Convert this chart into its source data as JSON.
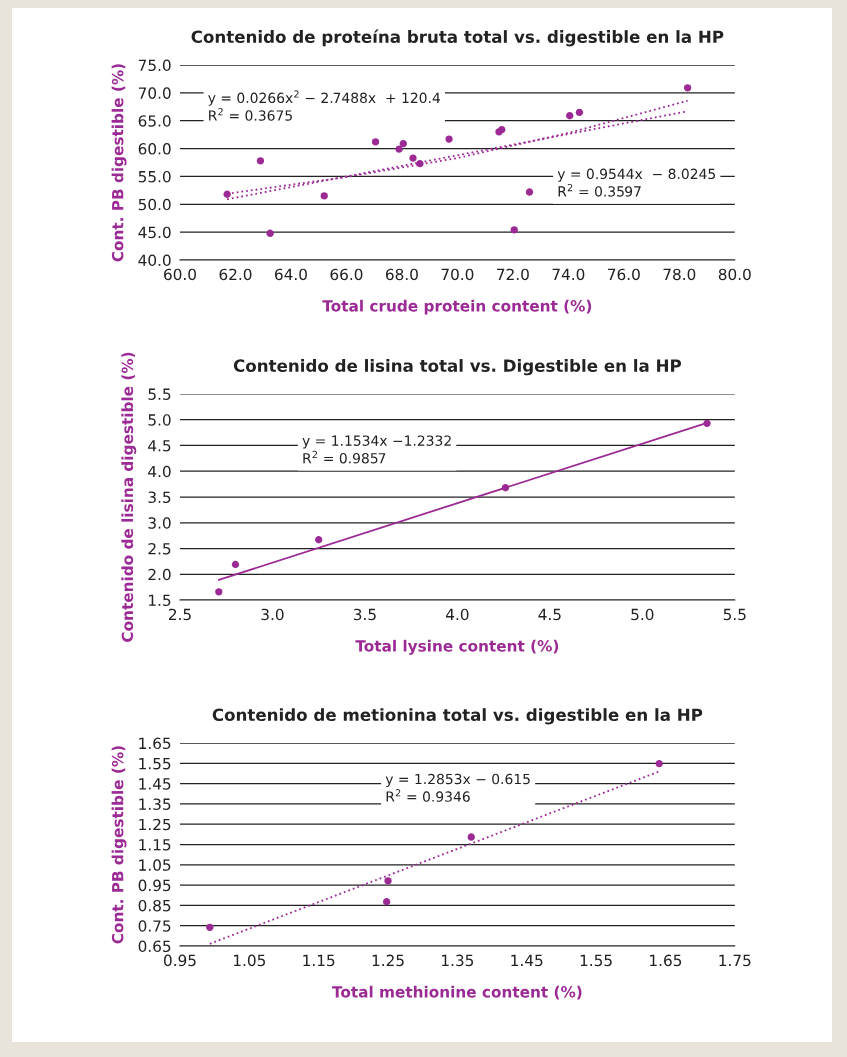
{
  "chart_data": [
    {
      "type": "scatter",
      "title": "Contenido de proteína bruta total vs. digestible en la HP",
      "xlabel": "Total crude protein content (%)",
      "ylabel": "Cont. PB digestible (%)",
      "xlim": [
        60,
        80
      ],
      "xticks": [
        {
          "value": 60,
          "label": "60.0"
        },
        {
          "value": 62,
          "label": "62.0"
        },
        {
          "value": 64,
          "label": "64.0"
        },
        {
          "value": 66,
          "label": "66.0"
        },
        {
          "value": 68,
          "label": "68.0"
        },
        {
          "value": 70,
          "label": "70.0"
        },
        {
          "value": 72,
          "label": "72.0"
        },
        {
          "value": 74,
          "label": "74.0"
        },
        {
          "value": 76,
          "label": "76.0"
        },
        {
          "value": 78,
          "label": "78.0"
        },
        {
          "value": 80,
          "label": "80.0"
        }
      ],
      "ylim": [
        40,
        75
      ],
      "yticks": [
        {
          "value": 40,
          "label": "40.0"
        },
        {
          "value": 45,
          "label": "45.0"
        },
        {
          "value": 50,
          "label": "50.0"
        },
        {
          "value": 55,
          "label": "55.0"
        },
        {
          "value": 60,
          "label": "60.0"
        },
        {
          "value": 65,
          "label": "65.0"
        },
        {
          "value": 70,
          "label": "70.0"
        },
        {
          "value": 75,
          "label": "75.0"
        }
      ],
      "grid": "y",
      "series": [
        {
          "marker": "circle",
          "color": "#9c2a95",
          "x": [
            61.7,
            62.9,
            63.25,
            65.2,
            67.05,
            67.9,
            68.05,
            68.4,
            68.65,
            69.7,
            71.5,
            71.6,
            72.05,
            72.6,
            74.05,
            74.4,
            78.3
          ],
          "values": [
            51.8,
            57.8,
            44.8,
            51.5,
            61.2,
            59.9,
            60.9,
            58.3,
            57.3,
            61.7,
            63.0,
            63.4,
            45.4,
            52.2,
            65.9,
            66.5,
            70.9
          ]
        },
        {
          "type": "line",
          "line_style": "dotted",
          "color": "#9c2a95",
          "x": [
            61.7,
            66,
            70,
            74,
            78.3
          ],
          "values": [
            51.9,
            54.9,
            58.3,
            62.8,
            68.6
          ]
        },
        {
          "type": "line",
          "line_style": "dotted",
          "color": "#9c2a95",
          "x": [
            61.7,
            78.3
          ],
          "values": [
            50.9,
            66.7
          ]
        }
      ],
      "annotations": [
        "y = 0.0266x$^{2}$ − 2.7488x  + 120.4\nR$^{2}$ = 0.3675",
        "y = 0.9544x  − 8.0245\nR$^{2}$ = 0.3597"
      ]
    },
    {
      "type": "scatter",
      "title": "Contenido de lisina total vs. Digestible en la HP",
      "xlabel": "Total lysine content (%)",
      "ylabel": "Contenido de lisina digestible (%)",
      "xlim": [
        2.5,
        5.5
      ],
      "xticks": [
        2.5,
        {
          "value": 3,
          "label": "3.0"
        },
        3.5,
        {
          "value": 4,
          "label": "4.0"
        },
        4.5,
        {
          "value": 5,
          "label": "5.0"
        },
        5.5
      ],
      "ylim": [
        1.5,
        5.5
      ],
      "yticks": [
        1.5,
        {
          "value": 2,
          "label": "2.0"
        },
        2.5,
        {
          "value": 3,
          "label": "3.0"
        },
        3.5,
        {
          "value": 4,
          "label": "4.0"
        },
        4.5,
        {
          "value": 5,
          "label": "5.0"
        },
        5.5
      ],
      "grid": "y",
      "series": [
        {
          "marker": "circle",
          "color": "#9c2a95",
          "x": [
            2.71,
            2.8,
            3.25,
            4.26,
            5.35
          ],
          "values": [
            1.66,
            2.19,
            2.67,
            3.68,
            4.93
          ]
        },
        {
          "type": "line",
          "line_style": "solid",
          "color": "#9c2a95",
          "x": [
            2.71,
            5.35
          ],
          "values": [
            1.89,
            4.94
          ]
        }
      ],
      "annotations": [
        "y = 1.1534x −1.2332\nR$^{2}$ = 0.9857"
      ]
    },
    {
      "type": "scatter",
      "title": "Contenido de metionina total vs. digestible en la HP",
      "xlabel": "Total methionine content (%)",
      "ylabel": "Cont. PB digestible (%)",
      "xlim": [
        0.95,
        1.75
      ],
      "xticks": [
        0.95,
        1.05,
        1.15,
        1.25,
        1.35,
        1.45,
        1.55,
        1.65,
        1.75
      ],
      "ylim": [
        0.65,
        1.65
      ],
      "yticks": [
        0.65,
        0.75,
        0.85,
        0.95,
        1.05,
        1.15,
        1.25,
        1.35,
        1.45,
        1.55,
        1.65
      ],
      "grid": "y",
      "series": [
        {
          "marker": "circle",
          "color": "#9c2a95",
          "x": [
            0.993,
            1.248,
            1.25,
            1.37,
            1.641
          ],
          "values": [
            0.742,
            0.868,
            0.971,
            1.187,
            1.549
          ]
        },
        {
          "type": "line",
          "line_style": "dotted",
          "color": "#9c2a95",
          "x": [
            0.993,
            1.641
          ],
          "values": [
            0.661,
            1.51
          ]
        }
      ],
      "annotations": [
        "y = 1.2853x − 0.615\nR$^{2}$ = 0.9346"
      ]
    }
  ]
}
